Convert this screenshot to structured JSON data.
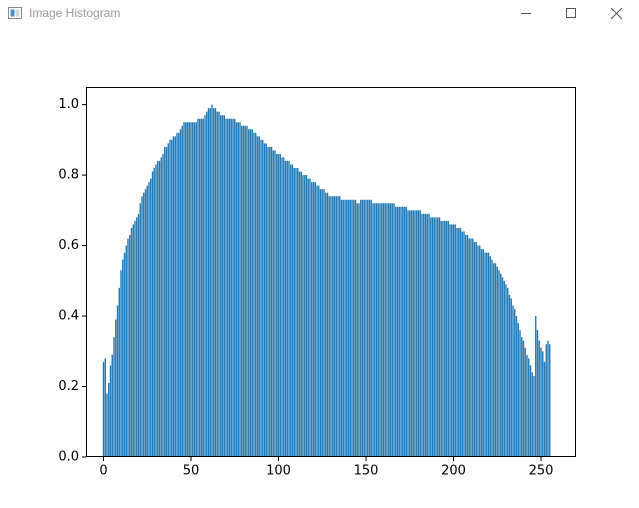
{
  "window": {
    "title": "Image Histogram"
  },
  "chart_data": {
    "type": "bar",
    "color": "#1f77b4",
    "x": [
      0,
      1,
      2,
      3,
      4,
      5,
      6,
      7,
      8,
      9,
      10,
      11,
      12,
      13,
      14,
      15,
      16,
      17,
      18,
      19,
      20,
      21,
      22,
      23,
      24,
      25,
      26,
      27,
      28,
      29,
      30,
      31,
      32,
      33,
      34,
      35,
      36,
      37,
      38,
      39,
      40,
      41,
      42,
      43,
      44,
      45,
      46,
      47,
      48,
      49,
      50,
      51,
      52,
      53,
      54,
      55,
      56,
      57,
      58,
      59,
      60,
      61,
      62,
      63,
      64,
      65,
      66,
      67,
      68,
      69,
      70,
      71,
      72,
      73,
      74,
      75,
      76,
      77,
      78,
      79,
      80,
      81,
      82,
      83,
      84,
      85,
      86,
      87,
      88,
      89,
      90,
      91,
      92,
      93,
      94,
      95,
      96,
      97,
      98,
      99,
      100,
      101,
      102,
      103,
      104,
      105,
      106,
      107,
      108,
      109,
      110,
      111,
      112,
      113,
      114,
      115,
      116,
      117,
      118,
      119,
      120,
      121,
      122,
      123,
      124,
      125,
      126,
      127,
      128,
      129,
      130,
      131,
      132,
      133,
      134,
      135,
      136,
      137,
      138,
      139,
      140,
      141,
      142,
      143,
      144,
      145,
      146,
      147,
      148,
      149,
      150,
      151,
      152,
      153,
      154,
      155,
      156,
      157,
      158,
      159,
      160,
      161,
      162,
      163,
      164,
      165,
      166,
      167,
      168,
      169,
      170,
      171,
      172,
      173,
      174,
      175,
      176,
      177,
      178,
      179,
      180,
      181,
      182,
      183,
      184,
      185,
      186,
      187,
      188,
      189,
      190,
      191,
      192,
      193,
      194,
      195,
      196,
      197,
      198,
      199,
      200,
      201,
      202,
      203,
      204,
      205,
      206,
      207,
      208,
      209,
      210,
      211,
      212,
      213,
      214,
      215,
      216,
      217,
      218,
      219,
      220,
      221,
      222,
      223,
      224,
      225,
      226,
      227,
      228,
      229,
      230,
      231,
      232,
      233,
      234,
      235,
      236,
      237,
      238,
      239,
      240,
      241,
      242,
      243,
      244,
      245,
      246,
      247,
      248,
      249,
      250,
      251,
      252,
      253,
      254,
      255
    ],
    "values": [
      0.27,
      0.28,
      0.18,
      0.21,
      0.26,
      0.29,
      0.34,
      0.39,
      0.43,
      0.48,
      0.53,
      0.56,
      0.58,
      0.6,
      0.62,
      0.63,
      0.65,
      0.66,
      0.67,
      0.68,
      0.69,
      0.72,
      0.74,
      0.75,
      0.76,
      0.77,
      0.78,
      0.79,
      0.81,
      0.82,
      0.83,
      0.84,
      0.84,
      0.85,
      0.86,
      0.88,
      0.88,
      0.89,
      0.9,
      0.9,
      0.91,
      0.91,
      0.92,
      0.92,
      0.93,
      0.94,
      0.95,
      0.95,
      0.95,
      0.95,
      0.95,
      0.95,
      0.95,
      0.95,
      0.96,
      0.96,
      0.96,
      0.96,
      0.97,
      0.98,
      0.99,
      0.99,
      1.0,
      0.99,
      0.99,
      0.98,
      0.98,
      0.97,
      0.97,
      0.97,
      0.96,
      0.96,
      0.96,
      0.96,
      0.96,
      0.96,
      0.95,
      0.95,
      0.95,
      0.94,
      0.94,
      0.94,
      0.94,
      0.93,
      0.93,
      0.93,
      0.92,
      0.92,
      0.91,
      0.91,
      0.9,
      0.9,
      0.89,
      0.89,
      0.88,
      0.88,
      0.88,
      0.87,
      0.87,
      0.86,
      0.86,
      0.86,
      0.85,
      0.85,
      0.84,
      0.84,
      0.84,
      0.83,
      0.83,
      0.82,
      0.82,
      0.82,
      0.81,
      0.81,
      0.8,
      0.8,
      0.8,
      0.79,
      0.79,
      0.78,
      0.78,
      0.78,
      0.77,
      0.77,
      0.76,
      0.76,
      0.76,
      0.75,
      0.75,
      0.74,
      0.74,
      0.74,
      0.74,
      0.74,
      0.74,
      0.74,
      0.73,
      0.73,
      0.73,
      0.73,
      0.73,
      0.73,
      0.73,
      0.73,
      0.73,
      0.72,
      0.72,
      0.73,
      0.73,
      0.73,
      0.73,
      0.73,
      0.73,
      0.73,
      0.72,
      0.72,
      0.72,
      0.72,
      0.72,
      0.72,
      0.72,
      0.72,
      0.72,
      0.72,
      0.72,
      0.72,
      0.72,
      0.71,
      0.71,
      0.71,
      0.71,
      0.71,
      0.71,
      0.71,
      0.7,
      0.7,
      0.7,
      0.7,
      0.7,
      0.7,
      0.7,
      0.7,
      0.69,
      0.69,
      0.69,
      0.69,
      0.69,
      0.68,
      0.68,
      0.68,
      0.68,
      0.68,
      0.68,
      0.67,
      0.67,
      0.67,
      0.67,
      0.67,
      0.66,
      0.66,
      0.66,
      0.66,
      0.65,
      0.65,
      0.65,
      0.64,
      0.64,
      0.63,
      0.63,
      0.62,
      0.62,
      0.62,
      0.61,
      0.61,
      0.6,
      0.6,
      0.59,
      0.59,
      0.58,
      0.58,
      0.58,
      0.57,
      0.56,
      0.55,
      0.55,
      0.54,
      0.53,
      0.52,
      0.51,
      0.5,
      0.49,
      0.48,
      0.46,
      0.45,
      0.43,
      0.42,
      0.4,
      0.38,
      0.36,
      0.34,
      0.33,
      0.31,
      0.29,
      0.28,
      0.26,
      0.24,
      0.23,
      0.4,
      0.36,
      0.33,
      0.31,
      0.3,
      0.27,
      0.32,
      0.33,
      0.32
    ],
    "xlim": [
      -10,
      270
    ],
    "xticks": [
      0,
      50,
      100,
      150,
      200,
      250
    ],
    "ylim": [
      0,
      1.05
    ],
    "yticks": [
      {
        "value": 0,
        "label": "0.0"
      },
      {
        "value": 0.2,
        "label": "0.2"
      },
      {
        "value": 0.4,
        "label": "0.4"
      },
      {
        "value": 0.6,
        "label": "0.6"
      },
      {
        "value": 0.8,
        "label": "0.8"
      },
      {
        "value": 1.0,
        "label": "1.0"
      }
    ]
  }
}
